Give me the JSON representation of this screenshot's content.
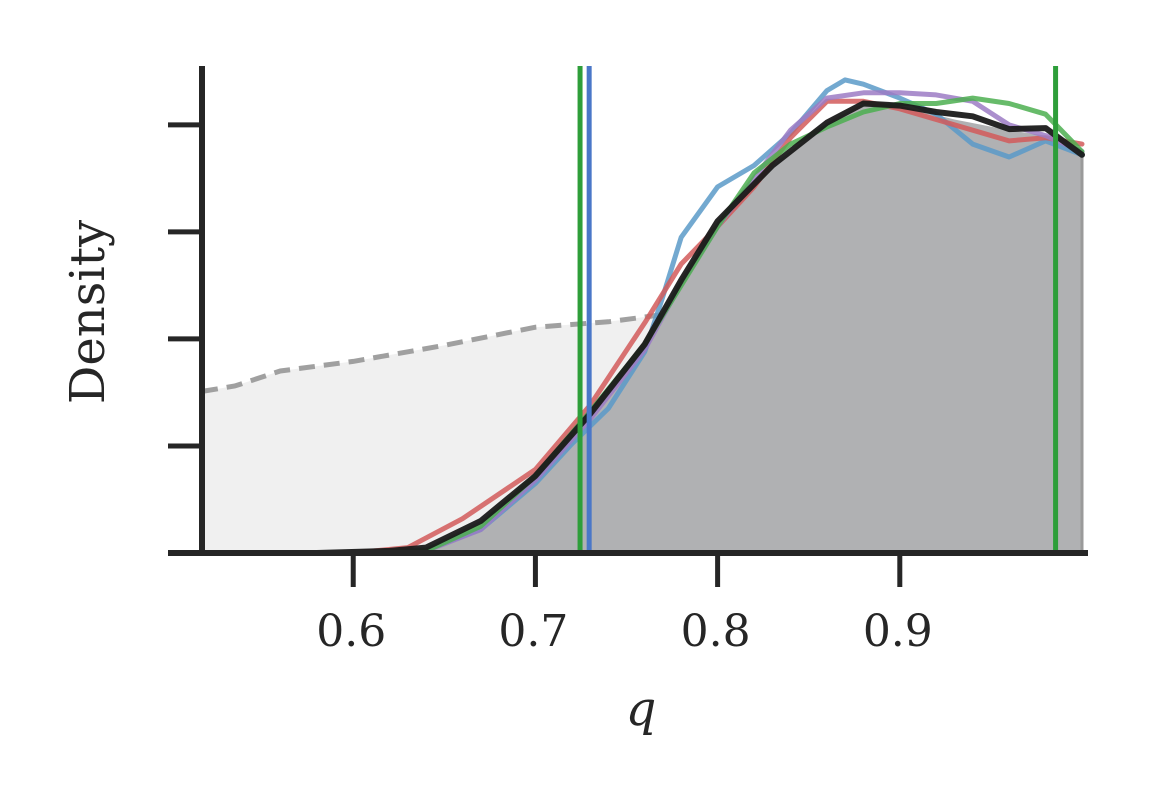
{
  "chart_data": {
    "type": "area",
    "title": "",
    "xlabel": "q",
    "ylabel": "Density",
    "xlim": [
      0.517,
      1.0
    ],
    "ylim": [
      0,
      4.55
    ],
    "x_ticks": [
      "0.6",
      "0.7",
      "0.8",
      "0.9"
    ],
    "y_ticks": [
      1,
      2,
      3,
      4
    ],
    "grid": false,
    "legend": "none",
    "prior": {
      "color": "#a0a0a0",
      "fill": "#f0f0f0",
      "x": [
        0.517,
        0.535,
        0.56,
        0.6,
        0.65,
        0.7,
        0.74,
        0.78,
        0.82,
        0.86,
        0.9,
        0.95,
        1.0
      ],
      "y": [
        1.51,
        1.56,
        1.7,
        1.79,
        1.94,
        2.11,
        2.16,
        2.25,
        2.22,
        2.29,
        2.23,
        2.07,
        2.07
      ]
    },
    "posterior_fill": {
      "color": "#b0b1b3",
      "x": [
        0.517,
        0.58,
        0.62,
        0.64,
        0.67,
        0.7,
        0.73,
        0.76,
        0.78,
        0.8,
        0.83,
        0.86,
        0.88,
        0.9,
        0.93,
        0.96,
        0.98,
        1.0
      ],
      "y": [
        0.0,
        0.0,
        0.02,
        0.05,
        0.3,
        0.72,
        1.3,
        1.95,
        2.55,
        3.1,
        3.62,
        4.02,
        4.2,
        4.18,
        4.05,
        3.95,
        3.9,
        3.72
      ]
    },
    "series": [
      {
        "color": "#1a1a1a",
        "x": [
          0.517,
          0.58,
          0.62,
          0.64,
          0.67,
          0.7,
          0.73,
          0.76,
          0.78,
          0.8,
          0.83,
          0.86,
          0.88,
          0.9,
          0.92,
          0.94,
          0.96,
          0.98,
          1.0
        ],
        "y": [
          0.0,
          0.0,
          0.02,
          0.05,
          0.3,
          0.72,
          1.3,
          1.95,
          2.55,
          3.1,
          3.62,
          4.02,
          4.2,
          4.18,
          4.12,
          4.08,
          3.96,
          3.97,
          3.72
        ]
      },
      {
        "color": "#5a9ac8",
        "x": [
          0.517,
          0.6,
          0.64,
          0.67,
          0.7,
          0.72,
          0.74,
          0.76,
          0.77,
          0.78,
          0.8,
          0.82,
          0.84,
          0.86,
          0.87,
          0.88,
          0.9,
          0.92,
          0.94,
          0.96,
          0.98,
          1.0
        ],
        "y": [
          0.0,
          0.0,
          0.03,
          0.22,
          0.65,
          1.02,
          1.35,
          1.88,
          2.4,
          2.95,
          3.42,
          3.62,
          3.92,
          4.32,
          4.42,
          4.38,
          4.25,
          4.1,
          3.82,
          3.7,
          3.85,
          3.72
        ]
      },
      {
        "color": "#d25a5a",
        "x": [
          0.517,
          0.6,
          0.63,
          0.66,
          0.7,
          0.73,
          0.76,
          0.78,
          0.8,
          0.82,
          0.84,
          0.86,
          0.88,
          0.9,
          0.92,
          0.94,
          0.96,
          0.98,
          1.0
        ],
        "y": [
          0.0,
          0.0,
          0.05,
          0.32,
          0.78,
          1.38,
          2.15,
          2.7,
          3.05,
          3.42,
          3.88,
          4.22,
          4.22,
          4.15,
          4.05,
          3.95,
          3.85,
          3.88,
          3.82
        ]
      },
      {
        "color": "#9c7bc4",
        "x": [
          0.517,
          0.6,
          0.64,
          0.67,
          0.7,
          0.73,
          0.76,
          0.78,
          0.8,
          0.82,
          0.84,
          0.86,
          0.88,
          0.9,
          0.92,
          0.94,
          0.96,
          0.98,
          1.0
        ],
        "y": [
          0.0,
          0.0,
          0.02,
          0.22,
          0.68,
          1.25,
          1.9,
          2.52,
          3.05,
          3.5,
          3.95,
          4.25,
          4.3,
          4.3,
          4.28,
          4.22,
          4.0,
          3.9,
          3.75
        ]
      },
      {
        "color": "#4caf50",
        "x": [
          0.517,
          0.6,
          0.64,
          0.67,
          0.7,
          0.73,
          0.76,
          0.78,
          0.8,
          0.82,
          0.84,
          0.86,
          0.88,
          0.9,
          0.92,
          0.94,
          0.96,
          0.98,
          1.0
        ],
        "y": [
          0.0,
          0.0,
          0.02,
          0.25,
          0.72,
          1.32,
          1.95,
          2.5,
          3.05,
          3.55,
          3.82,
          3.98,
          4.12,
          4.2,
          4.2,
          4.25,
          4.2,
          4.1,
          3.75
        ]
      }
    ],
    "vlines": [
      {
        "x": 0.7245,
        "color": "#2e9e3a"
      },
      {
        "x": 0.7295,
        "color": "#4a77c8"
      },
      {
        "x": 0.9855,
        "color": "#2e9e3a"
      }
    ]
  }
}
